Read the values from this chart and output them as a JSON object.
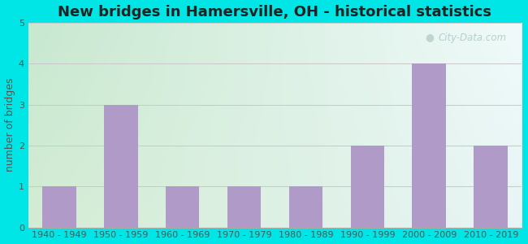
{
  "title": "New bridges in Hamersville, OH - historical statistics",
  "categories": [
    "1940 - 1949",
    "1950 - 1959",
    "1960 - 1969",
    "1970 - 1979",
    "1980 - 1989",
    "1990 - 1999",
    "2000 - 2009",
    "2010 - 2019"
  ],
  "values": [
    1,
    3,
    1,
    1,
    1,
    2,
    4,
    2
  ],
  "bar_color": "#b09ac8",
  "ylabel": "number of bridges",
  "ylim": [
    0,
    5
  ],
  "yticks": [
    0,
    1,
    2,
    3,
    4,
    5
  ],
  "background_outer": "#00e5e5",
  "bg_top_left": "#d4ecd4",
  "bg_top_right": "#e8f5f5",
  "bg_bottom_left": "#c8e8d0",
  "bg_bottom_right": "#f0fafa",
  "title_fontsize": 13,
  "axis_label_fontsize": 9,
  "tick_fontsize": 8,
  "watermark_text": "City-Data.com",
  "grid_color": "#c8c8c8",
  "bar_width": 0.55
}
